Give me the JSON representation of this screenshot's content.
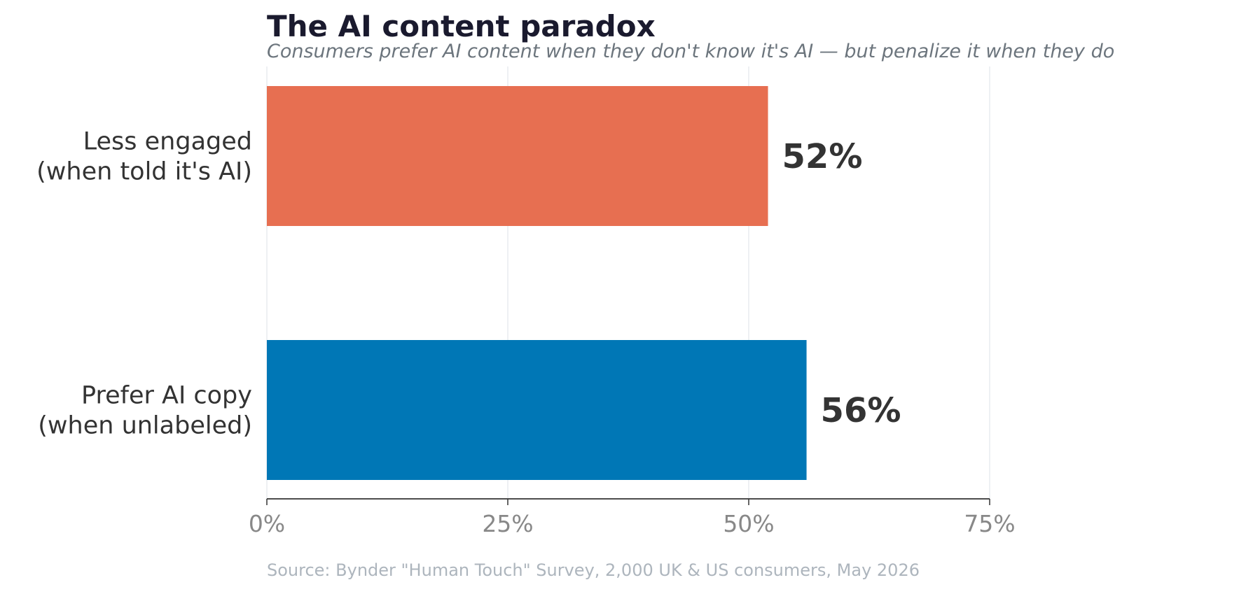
{
  "chart_data": {
    "type": "bar",
    "orientation": "horizontal",
    "title": "The AI content paradox",
    "subtitle": "Consumers prefer AI content when they don't know it's AI — but penalize it when they do",
    "categories": [
      {
        "lines": [
          "Less engaged",
          "(when told it's AI)"
        ]
      },
      {
        "lines": [
          "Prefer AI copy",
          "(when unlabeled)"
        ]
      }
    ],
    "values": [
      52,
      56
    ],
    "value_labels": [
      "52%",
      "56%"
    ],
    "colors": [
      "#E76F51",
      "#0077B6"
    ],
    "xlim": [
      0,
      75
    ],
    "xticks": [
      0,
      25,
      50,
      75
    ],
    "xtick_labels": [
      "0%",
      "25%",
      "50%",
      "75%"
    ],
    "grid": "vertical",
    "source": "Source: Bynder \"Human Touch\" Survey, 2,000 UK & US consumers, May 2026"
  },
  "colors": {
    "title": "#1A1A2E",
    "subtitle": "#6C757D",
    "text": "#333333",
    "tick": "#888888",
    "source": "#ADB5BD",
    "grid": "#E9ECEF",
    "axis": "#333333"
  }
}
